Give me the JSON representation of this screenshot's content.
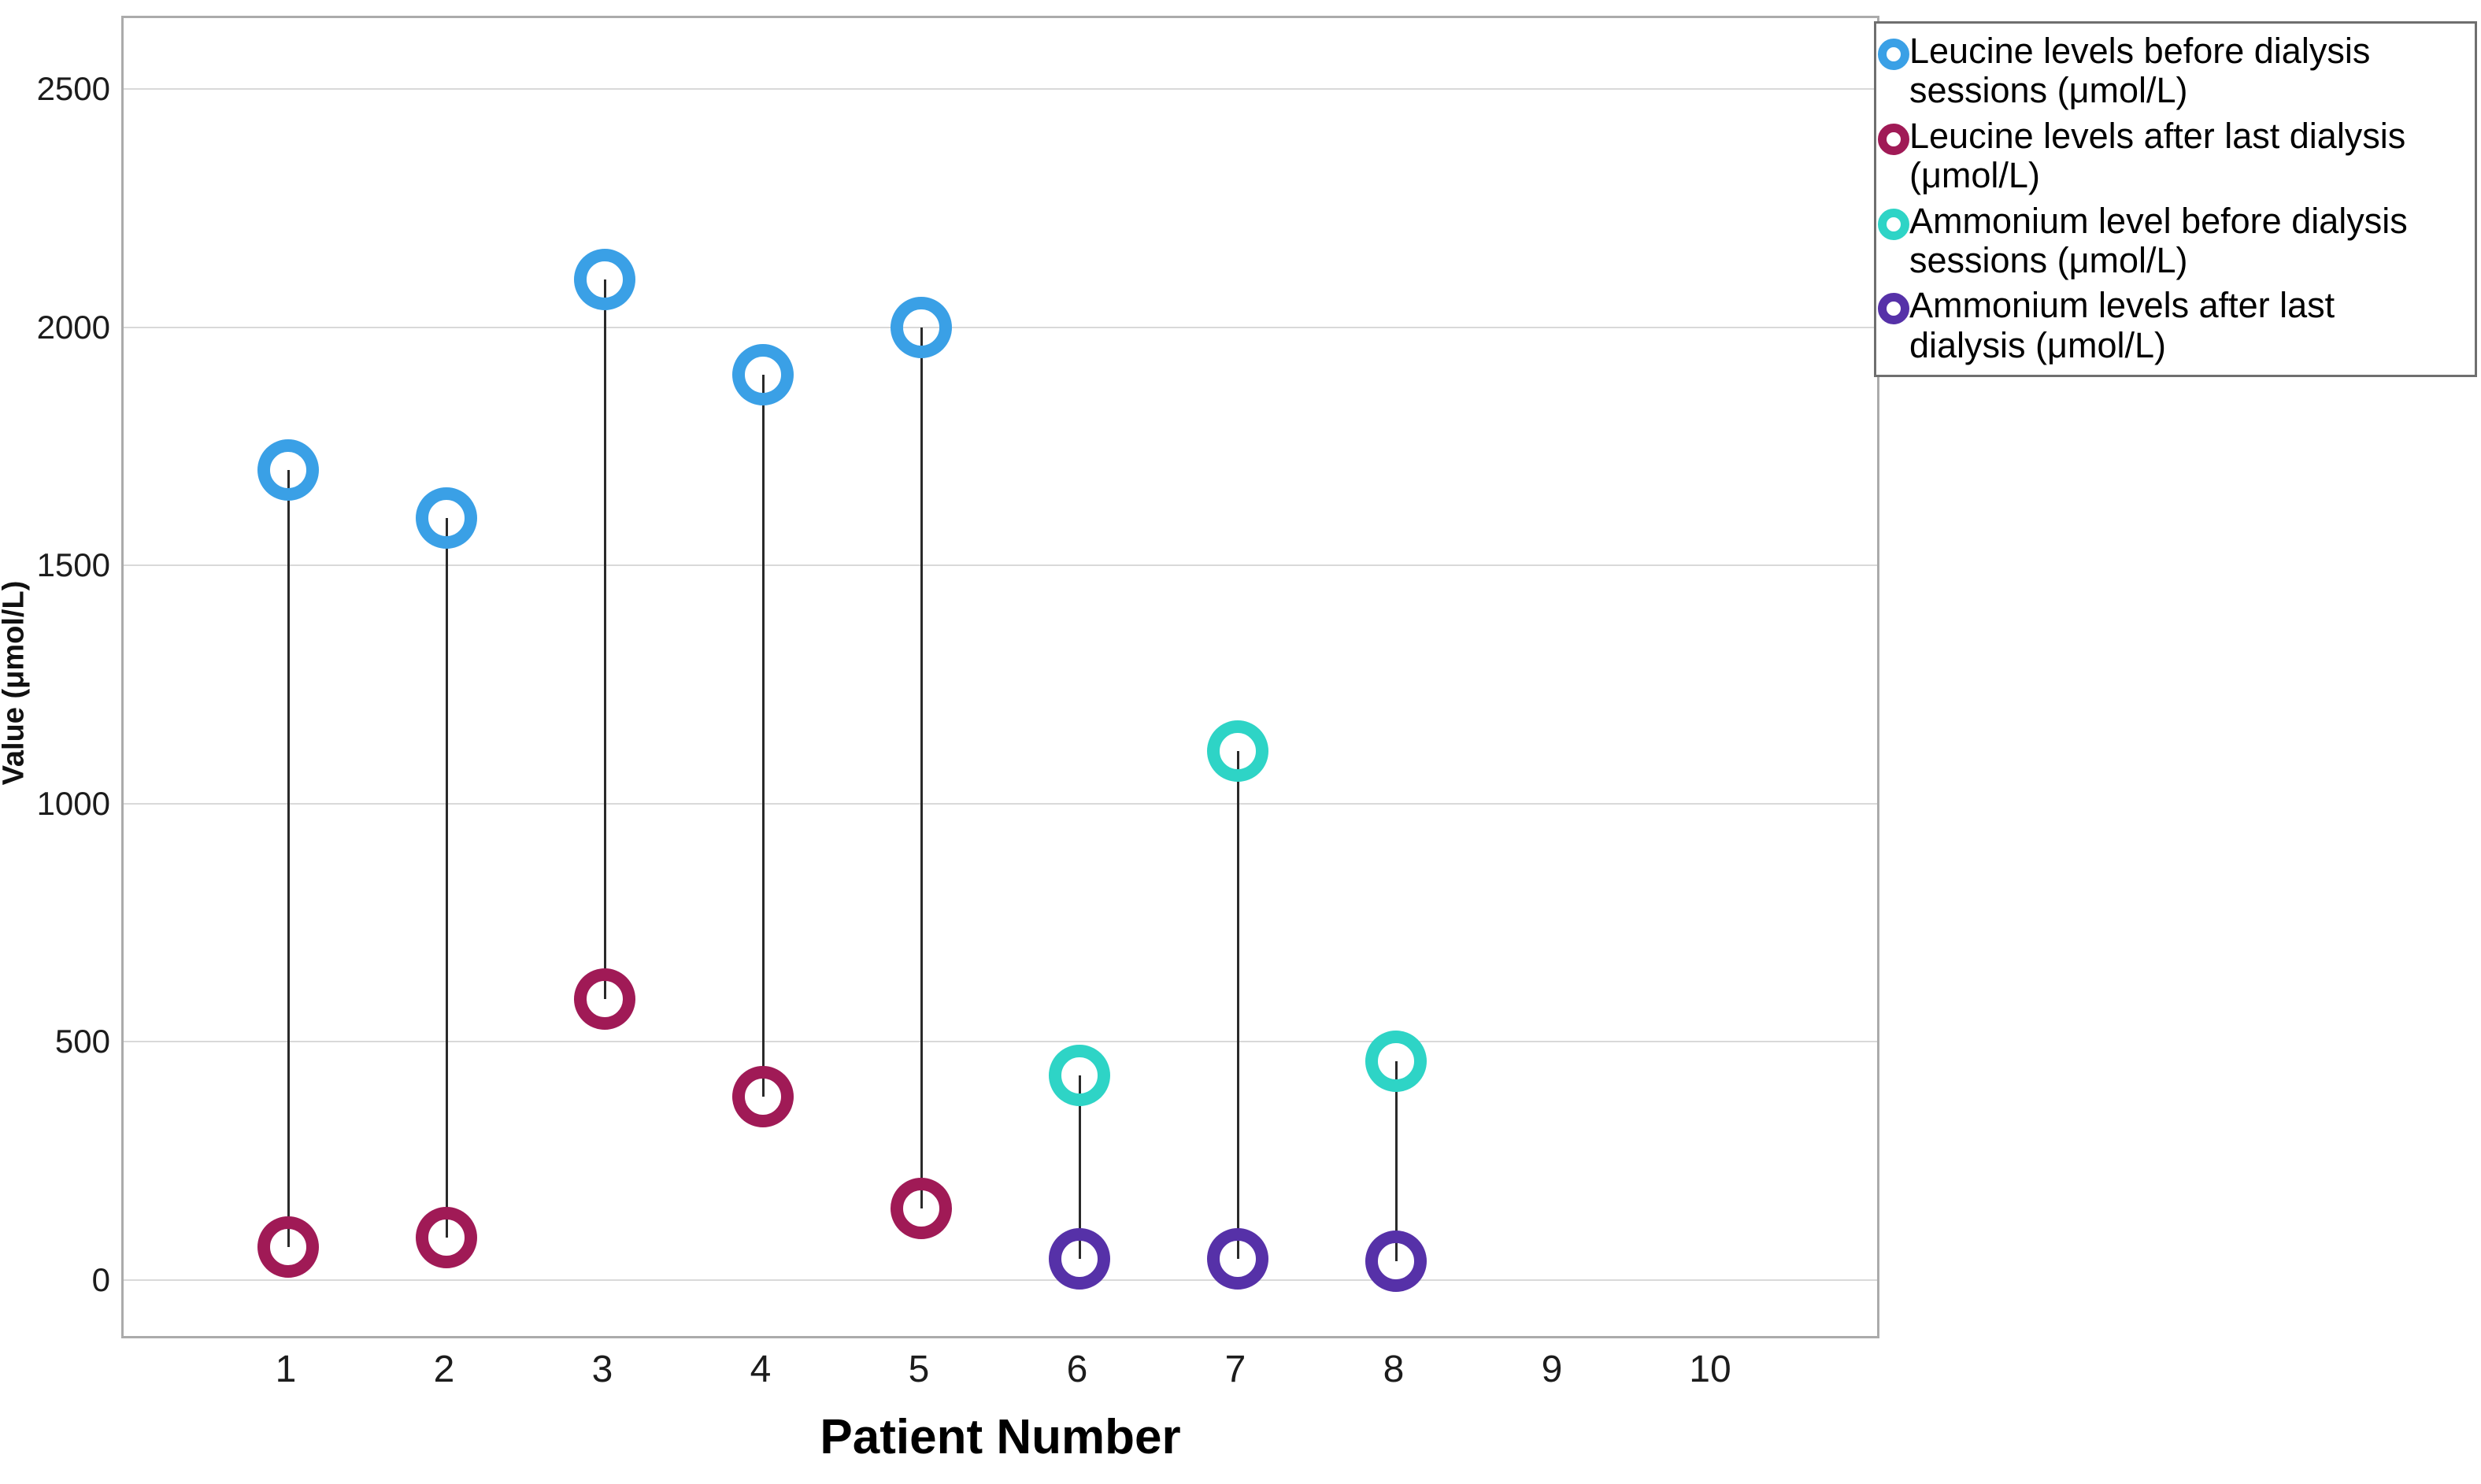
{
  "chart_data": {
    "type": "scatter",
    "title": "",
    "xlabel": "Patient Number",
    "ylabel": "Value (μmol/L)",
    "x_ticks": [
      1,
      2,
      3,
      4,
      5,
      6,
      7,
      8,
      9,
      10
    ],
    "y_ticks": [
      0,
      500,
      1000,
      1500,
      2000,
      2500
    ],
    "xlim": [
      0,
      11
    ],
    "ylim": [
      -130,
      2650
    ],
    "grid": "horizontal",
    "legend_position": "top-right-outside",
    "marker_style": "open-circle",
    "connectors": "vertical line joining before/after values per patient",
    "series": [
      {
        "name": "Leucine levels before dialysis sessions (μmol/L)",
        "color": "#3AA0E6",
        "points": [
          {
            "x": 1,
            "y": 1700
          },
          {
            "x": 2,
            "y": 1600
          },
          {
            "x": 3,
            "y": 2100
          },
          {
            "x": 4,
            "y": 1900
          },
          {
            "x": 5,
            "y": 2000
          }
        ]
      },
      {
        "name": "Leucine levels after last dialysis (μmol/L)",
        "color": "#A01A56",
        "points": [
          {
            "x": 1,
            "y": 70
          },
          {
            "x": 2,
            "y": 90
          },
          {
            "x": 3,
            "y": 590
          },
          {
            "x": 4,
            "y": 385
          },
          {
            "x": 5,
            "y": 150
          }
        ]
      },
      {
        "name": "Ammonium level before dialysis sessions (μmol/L)",
        "color": "#2ED4C6",
        "points": [
          {
            "x": 6,
            "y": 430
          },
          {
            "x": 7,
            "y": 1110
          },
          {
            "x": 8,
            "y": 460
          }
        ]
      },
      {
        "name": "Ammonium levels after last dialysis (μmol/L)",
        "color": "#5631A8",
        "points": [
          {
            "x": 6,
            "y": 45
          },
          {
            "x": 7,
            "y": 45
          },
          {
            "x": 8,
            "y": 40
          }
        ]
      }
    ]
  }
}
